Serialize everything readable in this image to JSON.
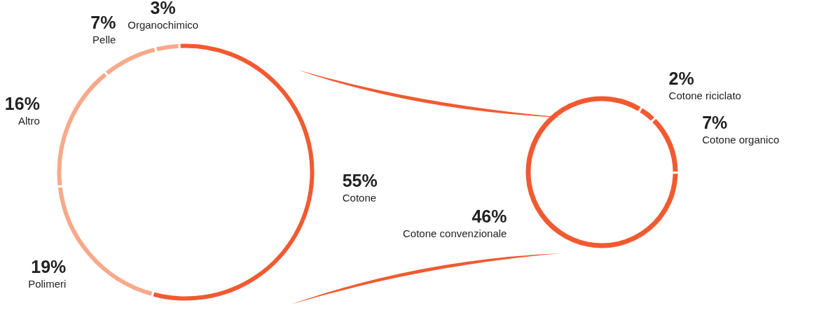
{
  "chart_data": [
    {
      "type": "donut",
      "categories": [
        "Cotone",
        "Polimeri",
        "Altro",
        "Pelle",
        "Organochimico"
      ],
      "values": [
        55,
        19,
        16,
        7,
        3
      ],
      "value_labels": [
        "55%",
        "19%",
        "16%",
        "7%",
        "3%"
      ],
      "colors": [
        "#f15a31",
        "#f8a98a",
        "#f8a98a",
        "#f8a98a",
        "#f8a98a"
      ]
    },
    {
      "type": "donut",
      "categories": [
        "Cotone riciclato",
        "Cotone organico",
        "Cotone convenzionale"
      ],
      "values": [
        2,
        7,
        46
      ],
      "value_labels": [
        "2%",
        "7%",
        "46%"
      ],
      "colors": [
        "#f15a31",
        "#f15a31",
        "#f15a31"
      ]
    }
  ]
}
